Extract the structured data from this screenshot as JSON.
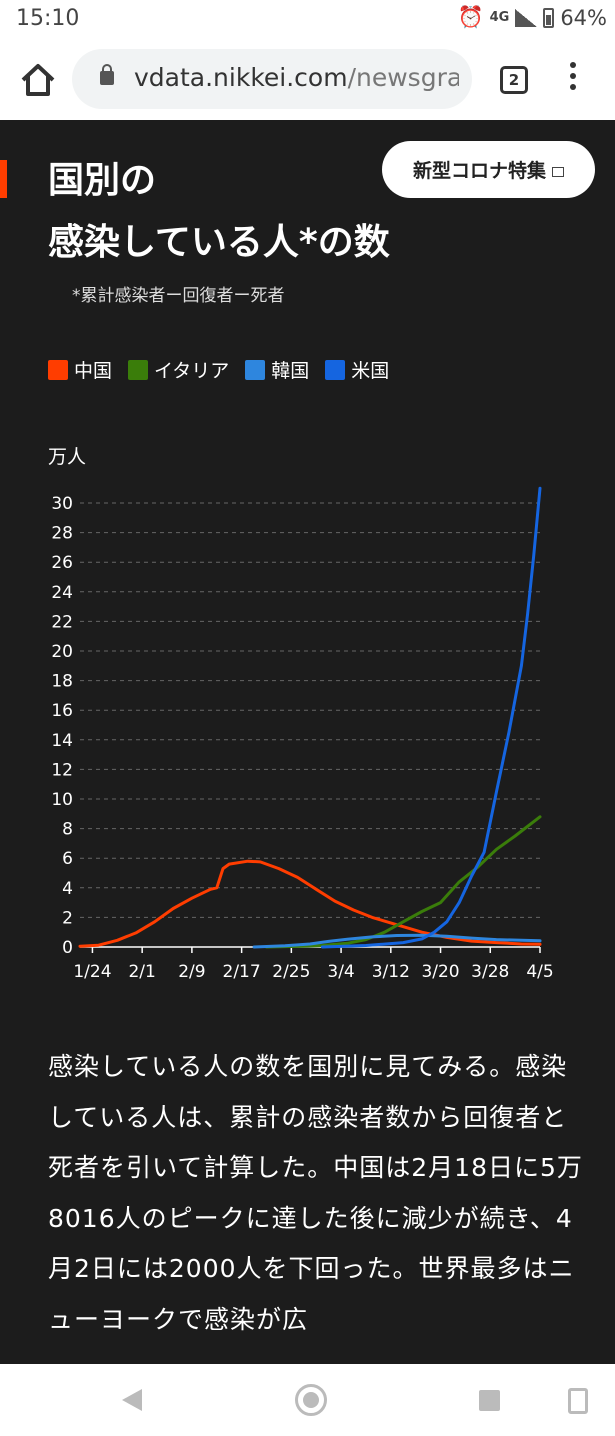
{
  "status_bar": {
    "time": "15:10",
    "network": "4G",
    "battery": "64%"
  },
  "browser": {
    "url_host": "vdata.nikkei.com",
    "url_path": "/newsgra",
    "tab_count": "2"
  },
  "article": {
    "title_line1": "国別の",
    "title_line2": "感染している人*の数",
    "footnote": "*累計感染者ー回復者ー死者",
    "feature_button": "新型コロナ特集",
    "body": "感染している人の数を国別に見てみる。感染している人は、累計の感染者数から回復者と死者を引いて計算した。中国は2月18日に5万8016人のピークに達した後に減少が続き、4月2日には2000人を下回った。世界最多はニューヨークで感染が広"
  },
  "colors": {
    "china": "#ff3d00",
    "italy": "#3a7d0a",
    "korea": "#2e86de",
    "usa": "#1565e0",
    "accent": "#ff3d00"
  },
  "chart_data": {
    "type": "line",
    "ylabel": "万人",
    "ylim": [
      0,
      30
    ],
    "yticks": [
      0,
      2,
      4,
      6,
      8,
      10,
      12,
      14,
      16,
      18,
      20,
      22,
      24,
      26,
      28,
      30
    ],
    "xlim": [
      "1/22",
      "4/5"
    ],
    "xticks": [
      "1/24",
      "2/1",
      "2/9",
      "2/17",
      "2/25",
      "3/4",
      "3/12",
      "3/20",
      "3/28",
      "4/5"
    ],
    "legend": [
      "中国",
      "イタリア",
      "韓国",
      "米国"
    ],
    "grid": true,
    "series": [
      {
        "name": "中国",
        "color": "#ff3d00",
        "points": [
          [
            "1/22",
            0.05
          ],
          [
            "1/25",
            0.12
          ],
          [
            "1/28",
            0.45
          ],
          [
            "1/31",
            0.95
          ],
          [
            "2/3",
            1.7
          ],
          [
            "2/6",
            2.6
          ],
          [
            "2/9",
            3.3
          ],
          [
            "2/12",
            3.9
          ],
          [
            "2/13",
            4.0
          ],
          [
            "2/14",
            5.3
          ],
          [
            "2/15",
            5.6
          ],
          [
            "2/18",
            5.8
          ],
          [
            "2/20",
            5.75
          ],
          [
            "2/23",
            5.3
          ],
          [
            "2/26",
            4.7
          ],
          [
            "2/29",
            3.9
          ],
          [
            "3/3",
            3.1
          ],
          [
            "3/6",
            2.5
          ],
          [
            "3/9",
            2.0
          ],
          [
            "3/13",
            1.5
          ],
          [
            "3/17",
            1.0
          ],
          [
            "3/21",
            0.65
          ],
          [
            "3/25",
            0.4
          ],
          [
            "3/29",
            0.3
          ],
          [
            "4/2",
            0.2
          ],
          [
            "4/5",
            0.18
          ]
        ]
      },
      {
        "name": "イタリア",
        "color": "#3a7d0a",
        "points": [
          [
            "2/21",
            0
          ],
          [
            "2/26",
            0.04
          ],
          [
            "3/1",
            0.1
          ],
          [
            "3/5",
            0.25
          ],
          [
            "3/8",
            0.5
          ],
          [
            "3/11",
            1.0
          ],
          [
            "3/14",
            1.7
          ],
          [
            "3/17",
            2.4
          ],
          [
            "3/20",
            3.0
          ],
          [
            "3/23",
            4.4
          ],
          [
            "3/26",
            5.4
          ],
          [
            "3/29",
            6.6
          ],
          [
            "4/1",
            7.5
          ],
          [
            "4/5",
            8.8
          ]
        ]
      },
      {
        "name": "韓国",
        "color": "#2e86de",
        "points": [
          [
            "2/19",
            0
          ],
          [
            "2/24",
            0.08
          ],
          [
            "2/28",
            0.2
          ],
          [
            "3/2",
            0.38
          ],
          [
            "3/5",
            0.52
          ],
          [
            "3/9",
            0.68
          ],
          [
            "3/13",
            0.78
          ],
          [
            "3/17",
            0.8
          ],
          [
            "3/21",
            0.72
          ],
          [
            "3/25",
            0.6
          ],
          [
            "3/29",
            0.5
          ],
          [
            "4/2",
            0.45
          ],
          [
            "4/5",
            0.42
          ]
        ]
      },
      {
        "name": "米国",
        "color": "#1565e0",
        "points": [
          [
            "3/1",
            0
          ],
          [
            "3/8",
            0.1
          ],
          [
            "3/14",
            0.3
          ],
          [
            "3/17",
            0.55
          ],
          [
            "3/19",
            1.0
          ],
          [
            "3/21",
            1.7
          ],
          [
            "3/23",
            3.0
          ],
          [
            "3/25",
            4.8
          ],
          [
            "3/27",
            6.4
          ],
          [
            "3/29",
            10.5
          ],
          [
            "3/31",
            14.5
          ],
          [
            "4/2",
            19.0
          ],
          [
            "4/3",
            22.5
          ],
          [
            "4/4",
            26.5
          ],
          [
            "4/5",
            31.0
          ]
        ]
      }
    ]
  }
}
